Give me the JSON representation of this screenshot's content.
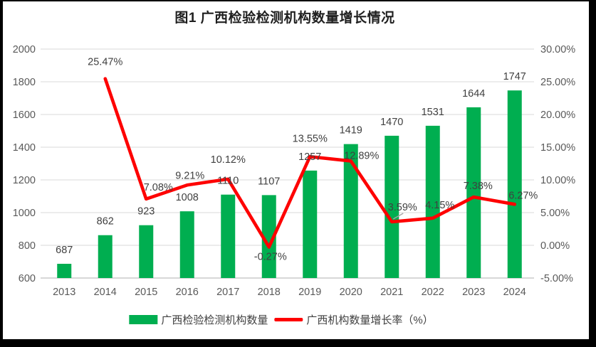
{
  "title": "图1 广西检验检测机构数量增长情况",
  "legend": {
    "bars_label": "广西检验检测机构数量",
    "line_label": "广西机构数量增长率（%）"
  },
  "colors": {
    "bar": "#00AE50",
    "line": "#FE0000",
    "grid": "#D9D9D9",
    "axis_line": "#BFBFBF",
    "tick_label": "#595959",
    "data_label": "#404040",
    "leader_line": "#A6A6A6",
    "frame": "#000000",
    "background": "#FFFFFF"
  },
  "chart_data": {
    "type": "bar+line combo",
    "title": "图1 广西检验检测机构数量增长情况",
    "categories": [
      "2013",
      "2014",
      "2015",
      "2016",
      "2017",
      "2018",
      "2019",
      "2020",
      "2021",
      "2022",
      "2023",
      "2024"
    ],
    "series": [
      {
        "name": "广西检验检测机构数量",
        "type": "bar",
        "axis": "left",
        "values": [
          687,
          862,
          923,
          1008,
          1110,
          1107,
          1257,
          1419,
          1470,
          1531,
          1644,
          1747
        ]
      },
      {
        "name": "广西机构数量增长率（%）",
        "type": "line",
        "axis": "right",
        "values": [
          null,
          25.47,
          7.08,
          9.21,
          10.12,
          -0.27,
          13.55,
          12.89,
          3.59,
          4.15,
          7.38,
          6.27
        ]
      }
    ],
    "left_axis": {
      "min": 600,
      "max": 2000,
      "step": 200
    },
    "right_axis": {
      "min": -5,
      "max": 30,
      "step": 5,
      "format": "0.00%"
    },
    "grid": true,
    "legend_position": "bottom",
    "data_labels": true
  }
}
